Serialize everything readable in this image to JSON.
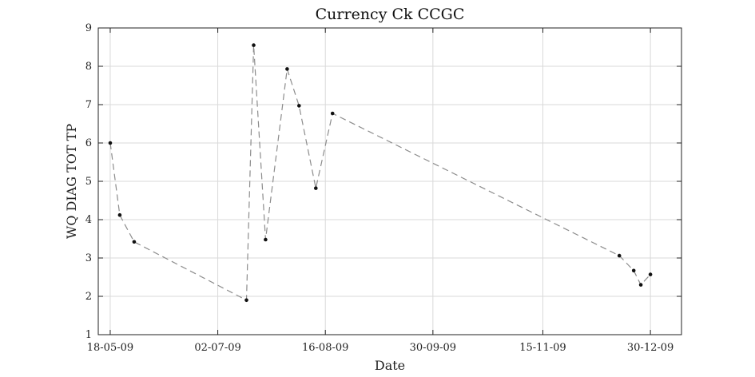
{
  "chart_data": {
    "type": "line",
    "title": "Currency Ck CCGC",
    "xlabel": "Date",
    "ylabel": "WQ DIAG TOT TP",
    "xlim": [
      "2009-05-13",
      "2010-01-12"
    ],
    "ylim": [
      1,
      9
    ],
    "grid": true,
    "x_ticks": [
      {
        "date": "2009-05-18",
        "label": "18-05-09"
      },
      {
        "date": "2009-07-02",
        "label": "02-07-09"
      },
      {
        "date": "2009-08-16",
        "label": "16-08-09"
      },
      {
        "date": "2009-09-30",
        "label": "30-09-09"
      },
      {
        "date": "2009-11-15",
        "label": "15-11-09"
      },
      {
        "date": "2009-12-30",
        "label": "30-12-09"
      }
    ],
    "y_ticks": [
      1,
      2,
      3,
      4,
      5,
      6,
      7,
      8,
      9
    ],
    "series": [
      {
        "color": "#8c8c8c",
        "marker_color": "#111111",
        "points": [
          {
            "x": "2009-05-18",
            "y": 6.0
          },
          {
            "x": "2009-05-22",
            "y": 4.12
          },
          {
            "x": "2009-05-28",
            "y": 3.42
          },
          {
            "x": "2009-07-14",
            "y": 1.9
          },
          {
            "x": "2009-07-17",
            "y": 8.55
          },
          {
            "x": "2009-07-22",
            "y": 3.48
          },
          {
            "x": "2009-07-31",
            "y": 7.93
          },
          {
            "x": "2009-08-05",
            "y": 6.97
          },
          {
            "x": "2009-08-12",
            "y": 4.82
          },
          {
            "x": "2009-08-19",
            "y": 6.77
          },
          {
            "x": "2009-12-17",
            "y": 3.06
          },
          {
            "x": "2009-12-23",
            "y": 2.67
          },
          {
            "x": "2009-12-26",
            "y": 2.3
          },
          {
            "x": "2009-12-30",
            "y": 2.57
          }
        ]
      }
    ]
  }
}
